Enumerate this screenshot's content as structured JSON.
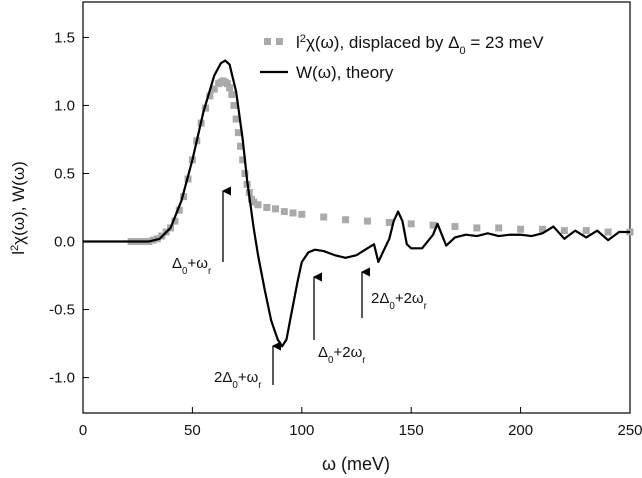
{
  "chart_data": {
    "type": "line",
    "xlabel": "ω (meV)",
    "ylabel": [
      {
        "text": "l"
      },
      {
        "sup": "2"
      },
      {
        "text": "χ(ω), W(ω)"
      }
    ],
    "xlim": [
      0,
      250
    ],
    "ylim": [
      -1.26,
      1.76
    ],
    "xticks": [
      0,
      50,
      100,
      150,
      200,
      250
    ],
    "yticks": [
      {
        "value": -1,
        "label": "-1.0"
      },
      {
        "value": -0.5,
        "label": "-0.5"
      },
      {
        "value": 0,
        "label": "0.0"
      },
      {
        "value": 0.5,
        "label": "0.5"
      },
      {
        "value": 1,
        "label": "1.0"
      },
      {
        "value": 1.5,
        "label": "1.5"
      }
    ],
    "legend": "upper right",
    "series": [
      {
        "name": [
          {
            "text": "l"
          },
          {
            "sup": "2"
          },
          {
            "text": "χ(ω), displaced by Δ"
          },
          {
            "sub": "0"
          },
          {
            "text": " = 23 meV"
          }
        ],
        "kind": "scatter",
        "color": "#aaaaaa",
        "x": [
          22,
          24,
          26,
          28,
          30,
          32,
          34,
          36,
          38,
          40,
          42,
          44,
          46,
          48,
          50,
          52,
          54,
          56,
          58,
          60,
          62,
          63,
          64,
          65,
          66,
          67,
          68,
          69,
          70,
          71,
          72,
          73,
          74,
          75,
          76,
          77,
          78,
          80,
          84,
          88,
          92,
          96,
          100,
          110,
          120,
          130,
          140,
          150,
          160,
          170,
          180,
          190,
          200,
          210,
          220,
          230,
          240,
          250
        ],
        "values": [
          0,
          0,
          0,
          0,
          0,
          0.01,
          0.02,
          0.04,
          0.07,
          0.1,
          0.15,
          0.23,
          0.33,
          0.46,
          0.6,
          0.74,
          0.87,
          0.98,
          1.07,
          1.12,
          1.16,
          1.17,
          1.18,
          1.17,
          1.16,
          1.13,
          1.08,
          1.0,
          0.9,
          0.8,
          0.7,
          0.6,
          0.5,
          0.42,
          0.36,
          0.31,
          0.29,
          0.27,
          0.25,
          0.24,
          0.22,
          0.21,
          0.2,
          0.18,
          0.16,
          0.15,
          0.14,
          0.13,
          0.12,
          0.11,
          0.1,
          0.1,
          0.09,
          0.09,
          0.08,
          0.08,
          0.07,
          0.07
        ]
      },
      {
        "name": "W(ω), theory",
        "kind": "line",
        "color": "#000000",
        "x": [
          0,
          30,
          35,
          40,
          45,
          50,
          55,
          60,
          63,
          65,
          67,
          70,
          73,
          75,
          78,
          80,
          83,
          86,
          89,
          91,
          93,
          95,
          98,
          100,
          103,
          106,
          110,
          115,
          120,
          125,
          130,
          133,
          135,
          137,
          140,
          142,
          144,
          146,
          148,
          150,
          155,
          160,
          162,
          164,
          166,
          168,
          170,
          175,
          180,
          185,
          190,
          195,
          200,
          205,
          210,
          215,
          220,
          225,
          230,
          235,
          240,
          245,
          250
        ],
        "values": [
          0,
          0,
          0.02,
          0.1,
          0.3,
          0.6,
          0.95,
          1.22,
          1.31,
          1.33,
          1.3,
          1.1,
          0.75,
          0.45,
          0.1,
          -0.1,
          -0.35,
          -0.58,
          -0.72,
          -0.77,
          -0.72,
          -0.55,
          -0.3,
          -0.15,
          -0.08,
          -0.06,
          -0.07,
          -0.1,
          -0.12,
          -0.1,
          -0.05,
          -0.02,
          -0.15,
          -0.08,
          0.02,
          0.15,
          0.22,
          0.15,
          -0.02,
          -0.05,
          -0.05,
          0.05,
          0.13,
          0.05,
          -0.03,
          0,
          0.03,
          0.05,
          0.04,
          0.06,
          0.04,
          0.05,
          0.05,
          0.04,
          0.06,
          0.11,
          0.02,
          0.08,
          0.03,
          0.08,
          0.01,
          0.07,
          0.07
        ]
      }
    ],
    "annotations": [
      [
        {
          "text": "Δ"
        },
        {
          "sub": "0"
        },
        {
          "text": "+ω"
        },
        {
          "sub": "r"
        }
      ],
      [
        {
          "text": "2Δ"
        },
        {
          "sub": "0"
        },
        {
          "text": "+ω"
        },
        {
          "sub": "r"
        }
      ],
      [
        {
          "text": "Δ"
        },
        {
          "sub": "0"
        },
        {
          "text": "+2ω"
        },
        {
          "sub": "r"
        }
      ],
      [
        {
          "text": "2Δ"
        },
        {
          "sub": "0"
        },
        {
          "text": "+2ω"
        },
        {
          "sub": "r"
        }
      ]
    ]
  }
}
